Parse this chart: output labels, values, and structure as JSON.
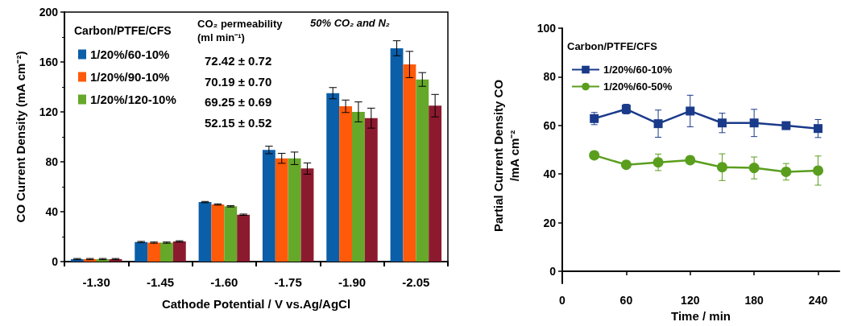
{
  "chart_data": [
    {
      "type": "bar",
      "xlabel": "Cathode Potential / V vs.Ag/AgCl",
      "ylabel": "CO Current Density (mA cm⁻²)",
      "categories": [
        "-1.30",
        "-1.45",
        "-1.60",
        "-1.75",
        "-1.90",
        "-2.05"
      ],
      "series": [
        {
          "name": "1/20%/60-10%",
          "color": "#0b5ea8",
          "values": [
            2,
            15.7,
            47.7,
            89.5,
            135,
            171
          ],
          "errors": [
            0.5,
            0.5,
            0.5,
            3,
            4.5,
            6
          ]
        },
        {
          "name": "1/20%/90-10%",
          "color": "#ff5a0a",
          "values": [
            2,
            15.2,
            45.8,
            82.8,
            124.5,
            158
          ],
          "errors": [
            0.5,
            0.5,
            0.5,
            4,
            5,
            10.5
          ]
        },
        {
          "name": "1/20%/120-10%",
          "color": "#66a82a",
          "values": [
            2,
            15.2,
            44.3,
            82.8,
            120,
            146
          ],
          "errors": [
            0.5,
            0.5,
            0.5,
            5,
            8,
            5.5
          ]
        },
        {
          "color": "#8c1a2e",
          "values": [
            2,
            16.2,
            37.6,
            74.6,
            115,
            125
          ],
          "errors": [
            0.5,
            0.5,
            0.5,
            4.5,
            8,
            9
          ]
        }
      ],
      "ylim": [
        0,
        200
      ],
      "yticks": [
        0,
        40,
        80,
        120,
        160,
        200
      ],
      "grid": false,
      "legend": "top left",
      "legend_title": "Carbon/PTFE/CFS",
      "annotations": [
        "CO₂ permeability\n(ml min⁻¹)",
        "72.42 ± 0.72",
        "70.19 ± 0.70",
        "69.25 ± 0.69",
        "52.15 ± 0.52",
        "50% CO₂ and N₂"
      ]
    },
    {
      "type": "line",
      "xlabel": "Time / min",
      "ylabel": "Partial Current Density CO\n/mA cm⁻²",
      "x": [
        30,
        60,
        90,
        120,
        150,
        180,
        210,
        240
      ],
      "series": [
        {
          "name": "1/20%/60-10%",
          "color": "#1a3a8a",
          "marker": "square",
          "values": [
            62.8,
            66.7,
            60.7,
            65.9,
            61,
            61,
            59.9,
            58.7
          ],
          "errors": [
            2.5,
            2,
            5.6,
            6.5,
            4,
            5.6,
            1.5,
            3.7
          ]
        },
        {
          "name": "1/20%/60-50%",
          "color": "#5a9e1e",
          "marker": "circle",
          "values": [
            47.7,
            43.8,
            44.8,
            45.7,
            42.8,
            42.5,
            40.9,
            41.4
          ],
          "errors": [
            1,
            1,
            3.4,
            1,
            5.5,
            4.5,
            3.4,
            6
          ]
        }
      ],
      "xlim": [
        0,
        260
      ],
      "xticks": [
        0,
        60,
        120,
        180,
        240
      ],
      "ylim": [
        -5,
        100
      ],
      "yticks": [
        0,
        20,
        40,
        60,
        80,
        100
      ],
      "grid": false,
      "legend": "top left",
      "legend_title": "Carbon/PTFE/CFS",
      "line_style": "solid"
    }
  ]
}
